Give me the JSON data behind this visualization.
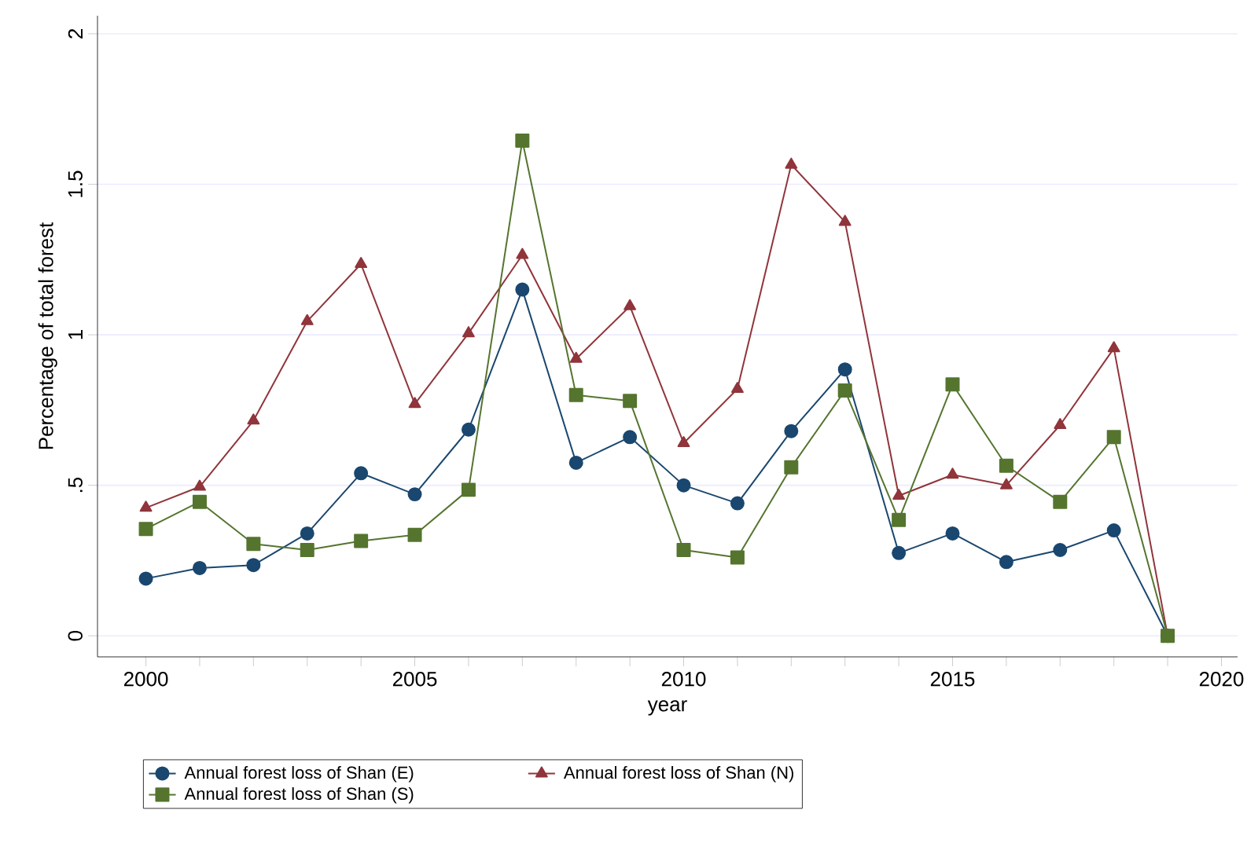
{
  "chart_data": {
    "type": "line",
    "xlabel": "year",
    "ylabel": "Percentage of total forest",
    "x": [
      2000,
      2001,
      2002,
      2003,
      2004,
      2005,
      2006,
      2007,
      2008,
      2009,
      2010,
      2011,
      2012,
      2013,
      2014,
      2015,
      2016,
      2017,
      2018,
      2019
    ],
    "series": [
      {
        "name": "Annual forest loss of Shan (E)",
        "color": "#1a476f",
        "marker": "circle",
        "values": [
          0.19,
          0.225,
          0.235,
          0.34,
          0.54,
          0.47,
          0.685,
          1.15,
          0.575,
          0.66,
          0.5,
          0.44,
          0.68,
          0.885,
          0.275,
          0.34,
          0.245,
          0.285,
          0.35,
          0
        ]
      },
      {
        "name": "Annual forest loss of Shan (N)",
        "color": "#90353b",
        "marker": "triangle",
        "values": [
          0.425,
          0.495,
          0.715,
          1.045,
          1.235,
          0.77,
          1.005,
          1.265,
          0.92,
          1.095,
          0.64,
          0.82,
          1.565,
          1.375,
          0.465,
          0.535,
          0.5,
          0.7,
          0.955,
          0
        ]
      },
      {
        "name": "Annual forest loss of Shan (S)",
        "color": "#55752f",
        "marker": "square",
        "values": [
          0.355,
          0.445,
          0.305,
          0.285,
          0.315,
          0.335,
          0.485,
          1.645,
          0.8,
          0.78,
          0.285,
          0.26,
          0.56,
          0.815,
          0.385,
          0.835,
          0.565,
          0.445,
          0.66,
          0
        ]
      }
    ],
    "xlim": [
      1999.1,
      2020.3
    ],
    "ylim": [
      -0.07,
      2.06
    ],
    "xticks": [
      2000,
      {
        "value": 2001,
        "label": null
      },
      {
        "value": 2002,
        "label": null
      },
      {
        "value": 2003,
        "label": null
      },
      {
        "value": 2004,
        "label": null
      },
      2005,
      {
        "value": 2006,
        "label": null
      },
      {
        "value": 2007,
        "label": null
      },
      {
        "value": 2008,
        "label": null
      },
      {
        "value": 2009,
        "label": null
      },
      2010,
      {
        "value": 2011,
        "label": null
      },
      {
        "value": 2012,
        "label": null
      },
      {
        "value": 2013,
        "label": null
      },
      {
        "value": 2014,
        "label": null
      },
      2015,
      {
        "value": 2016,
        "label": null
      },
      {
        "value": 2017,
        "label": null
      },
      {
        "value": 2018,
        "label": null
      },
      {
        "value": 2019,
        "label": null
      },
      2020
    ],
    "yticks": [
      0,
      {
        "value": 0.5,
        "label": ".5"
      },
      1,
      {
        "value": 1.5,
        "label": "1.5"
      },
      2
    ],
    "grid": "y",
    "legend": "bottom",
    "line_style": "solid"
  }
}
